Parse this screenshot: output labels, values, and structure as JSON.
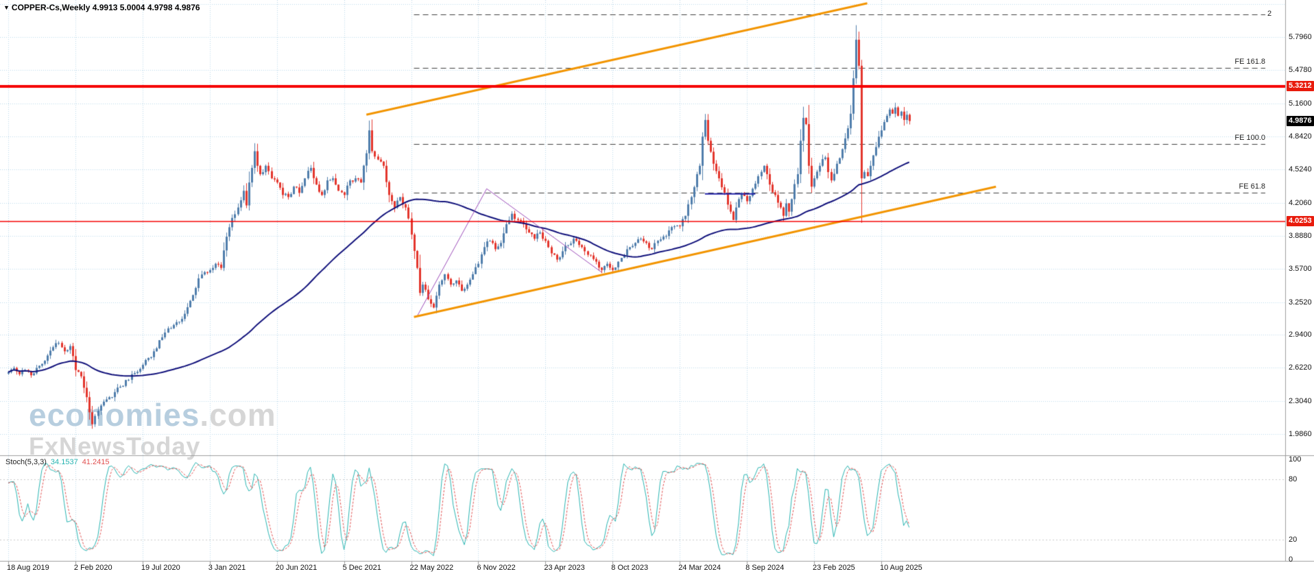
{
  "header": {
    "symbol_info": "COPPER-Cs,Weekly 4.9913 5.0004 4.9798 4.9876",
    "symbol": "COPPER-Cs",
    "timeframe": "Weekly",
    "open": "4.9913",
    "high": "5.0004",
    "low": "4.9798",
    "close": "4.9876"
  },
  "watermark": {
    "brand": "economies",
    "suffix": ".com",
    "tagline": "FxNewsToday"
  },
  "indicator": {
    "label": "Stoch(5,3,3)",
    "value_k": "34.1537",
    "value_d": "41.2415",
    "ticks": [
      "100",
      "80",
      "20",
      "0"
    ],
    "levels": [
      20,
      80
    ]
  },
  "price_axis": {
    "ticks": [
      "5.7960",
      "5.4780",
      "5.1600",
      "4.8420",
      "4.5240",
      "4.2060",
      "3.8880",
      "3.5700",
      "3.2520",
      "2.9400",
      "2.6220",
      "2.3040",
      "1.9860"
    ],
    "badges": [
      {
        "label": "5.3212",
        "price": 5.3212,
        "color": "#e81b0c",
        "type": "resistance-line-price"
      },
      {
        "label": "4.9876",
        "price": 4.9876,
        "color": "#000000",
        "type": "current-price"
      },
      {
        "label": "4.0253",
        "price": 4.0253,
        "color": "#e81b0c",
        "type": "support-line-price"
      }
    ]
  },
  "time_axis": {
    "labels": [
      {
        "week": 0,
        "label": "18 Aug 2019"
      },
      {
        "week": 24,
        "label": "2 Feb 2020"
      },
      {
        "week": 48,
        "label": "19 Jul 2020"
      },
      {
        "week": 72,
        "label": "3 Jan 2021"
      },
      {
        "week": 96,
        "label": "20 Jun 2021"
      },
      {
        "week": 120,
        "label": "5 Dec 2021"
      },
      {
        "week": 144,
        "label": "22 May 2022"
      },
      {
        "week": 168,
        "label": "6 Nov 2022"
      },
      {
        "week": 192,
        "label": "23 Apr 2023"
      },
      {
        "week": 216,
        "label": "8 Oct 2023"
      },
      {
        "week": 240,
        "label": "24 Mar 2024"
      },
      {
        "week": 264,
        "label": "8 Sep 2024"
      },
      {
        "week": 288,
        "label": "23 Feb 2025"
      },
      {
        "week": 312,
        "label": "10 Aug 2025"
      }
    ]
  },
  "colors": {
    "grid": "#b9d6e9",
    "bull": "#4f7dab",
    "bear": "#e3352c",
    "ma": "#10107a",
    "trend": "#f29400",
    "pattern": "#9b4bb8",
    "support": "#2020a8",
    "hline": "#f50000",
    "fib": "#3c3c3c",
    "stoch_k": "#26b3b0",
    "stoch_d": "#e05050",
    "border": "#9c9c9c",
    "watermark_blue": "#b7cedf",
    "watermark_gray": "#d6d6d6",
    "axis_text": "#111111"
  },
  "chart_data": {
    "type": "candlestick",
    "title": "COPPER-Cs Weekly with Stochastic(5,3,3)",
    "x_axis": "date (weekly)",
    "y_axis": "price",
    "current_price": 4.9876,
    "price_range": [
      1.782,
      6.151
    ],
    "grid_price_step": 0.318,
    "weeks_total": 322,
    "ma_period": 80,
    "anchors_weeks": [
      0,
      2,
      4,
      6,
      8,
      10,
      12,
      14,
      16,
      18,
      20,
      22,
      24,
      26,
      28,
      30,
      31,
      33,
      36,
      40,
      44,
      48,
      52,
      56,
      60,
      63,
      66,
      68,
      70,
      72,
      74,
      76,
      78,
      80,
      82,
      84,
      85,
      86,
      88,
      89,
      90,
      92,
      94,
      96,
      98,
      100,
      102,
      104,
      106,
      108,
      110,
      112,
      114,
      116,
      118,
      120,
      122,
      124,
      126,
      128,
      129,
      130,
      132,
      134,
      136,
      138,
      140,
      142,
      144,
      146,
      147,
      148,
      150,
      152,
      154,
      156,
      158,
      160,
      162,
      164,
      166,
      168,
      170,
      172,
      174,
      176,
      178,
      180,
      182,
      184,
      186,
      188,
      190,
      192,
      194,
      196,
      198,
      200,
      202,
      204,
      206,
      208,
      210,
      212,
      214,
      216,
      218,
      220,
      222,
      224,
      226,
      228,
      230,
      232,
      234,
      236,
      238,
      240,
      242,
      244,
      246,
      247,
      248,
      249,
      250,
      252,
      254,
      256,
      258,
      259,
      260,
      262,
      264,
      266,
      268,
      270,
      271,
      272,
      274,
      276,
      277,
      278,
      279,
      280,
      282,
      283,
      284,
      285,
      286,
      287,
      288,
      290,
      292,
      293,
      294,
      296,
      298,
      300,
      301,
      302,
      303,
      304,
      305,
      306,
      307,
      308,
      309,
      310,
      311,
      312,
      313,
      314,
      315,
      316,
      317,
      318,
      319,
      320,
      321,
      322
    ],
    "anchors_closes": [
      2.58,
      2.62,
      2.56,
      2.6,
      2.55,
      2.62,
      2.66,
      2.74,
      2.82,
      2.86,
      2.78,
      2.83,
      2.6,
      2.54,
      2.34,
      2.08,
      2.16,
      2.26,
      2.34,
      2.44,
      2.56,
      2.65,
      2.78,
      2.96,
      3.06,
      3.14,
      3.32,
      3.48,
      3.54,
      3.56,
      3.62,
      3.58,
      3.88,
      4.06,
      4.16,
      4.32,
      4.18,
      4.4,
      4.7,
      4.56,
      4.48,
      4.56,
      4.44,
      4.4,
      4.28,
      4.26,
      4.36,
      4.3,
      4.44,
      4.54,
      4.38,
      4.28,
      4.42,
      4.44,
      4.32,
      4.28,
      4.42,
      4.44,
      4.4,
      4.68,
      4.9,
      4.7,
      4.62,
      4.56,
      4.28,
      4.16,
      4.26,
      4.16,
      3.9,
      3.58,
      3.34,
      3.42,
      3.28,
      3.2,
      3.42,
      3.52,
      3.42,
      3.46,
      3.36,
      3.42,
      3.52,
      3.62,
      3.78,
      3.84,
      3.76,
      3.82,
      4.0,
      4.1,
      4.04,
      4.0,
      3.92,
      3.86,
      3.92,
      3.84,
      3.72,
      3.66,
      3.74,
      3.8,
      3.86,
      3.8,
      3.74,
      3.7,
      3.64,
      3.56,
      3.62,
      3.56,
      3.64,
      3.7,
      3.78,
      3.82,
      3.86,
      3.82,
      3.76,
      3.84,
      3.88,
      3.94,
      3.98,
      3.98,
      4.08,
      4.26,
      4.48,
      4.56,
      4.84,
      5.0,
      4.8,
      4.58,
      4.44,
      4.3,
      4.12,
      4.04,
      4.16,
      4.3,
      4.22,
      4.34,
      4.46,
      4.56,
      4.48,
      4.38,
      4.28,
      4.16,
      4.08,
      4.2,
      4.12,
      4.24,
      4.48,
      4.8,
      5.02,
      4.96,
      4.56,
      4.36,
      4.44,
      4.56,
      4.64,
      4.5,
      4.42,
      4.58,
      4.72,
      4.92,
      5.06,
      5.4,
      5.77,
      5.52,
      4.44,
      4.5,
      4.46,
      4.56,
      4.66,
      4.74,
      4.84,
      4.9,
      4.98,
      5.04,
      5.1,
      5.06,
      5.12,
      5.04,
      5.08,
      5.0,
      5.05,
      4.99
    ],
    "fib_start_week": 145,
    "fib_levels": [
      {
        "label": "2",
        "price": 6.01,
        "label_side": "right"
      },
      {
        "label": "FE 161.8",
        "price": 5.5,
        "label_side": "above"
      },
      {
        "label": "FE 100.0",
        "price": 4.77,
        "label_side": "above"
      },
      {
        "label": "FE 61.8",
        "price": 4.3,
        "label_side": "above"
      }
    ],
    "h_lines": [
      {
        "price": 5.3212,
        "width": 4
      },
      {
        "price": 4.0253,
        "width": 1.5
      }
    ],
    "trend_lines": [
      {
        "name": "channel-upper",
        "points": [
          [
            128,
            5.05
          ],
          [
            307,
            6.12
          ]
        ]
      },
      {
        "name": "channel-lower",
        "points": [
          [
            145,
            3.11
          ],
          [
            353,
            4.36
          ]
        ]
      }
    ],
    "pattern_lines": [
      {
        "name": "abc-zigzag",
        "points": [
          [
            146,
            3.11
          ],
          [
            171,
            4.34
          ],
          [
            212,
            3.54
          ]
        ]
      }
    ],
    "support_segments": [
      {
        "week_start": 249,
        "week_end": 267,
        "price": 4.29
      }
    ],
    "stoch": {
      "k_period": 5,
      "slowing": 3,
      "d_period": 3,
      "range": [
        0,
        100
      ]
    }
  }
}
